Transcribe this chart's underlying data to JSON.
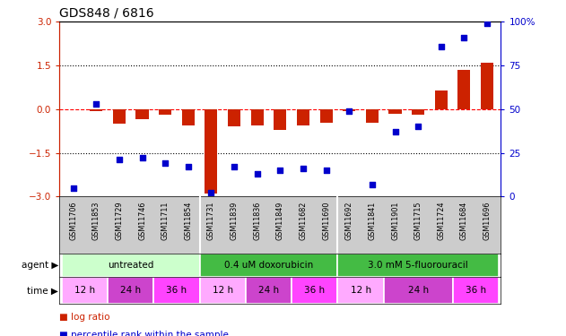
{
  "title": "GDS848 / 6816",
  "samples": [
    "GSM11706",
    "GSM11853",
    "GSM11729",
    "GSM11746",
    "GSM11711",
    "GSM11854",
    "GSM11731",
    "GSM11839",
    "GSM11836",
    "GSM11849",
    "GSM11682",
    "GSM11690",
    "GSM11692",
    "GSM11841",
    "GSM11901",
    "GSM11715",
    "GSM11724",
    "GSM11684",
    "GSM11696"
  ],
  "log_ratio": [
    0.0,
    -0.05,
    -0.5,
    -0.35,
    -0.2,
    -0.55,
    -2.9,
    -0.6,
    -0.55,
    -0.7,
    -0.55,
    -0.45,
    -0.05,
    -0.45,
    -0.15,
    -0.2,
    0.65,
    1.35,
    1.6
  ],
  "percentile": [
    5,
    53,
    21,
    22,
    19,
    17,
    2,
    17,
    13,
    15,
    16,
    15,
    49,
    7,
    37,
    40,
    86,
    91,
    99
  ],
  "agent_spans": [
    {
      "label": "untreated",
      "start": 0,
      "end": 6,
      "color": "#ccffcc"
    },
    {
      "label": "0.4 uM doxorubicin",
      "start": 6,
      "end": 12,
      "color": "#44bb44"
    },
    {
      "label": "3.0 mM 5-fluorouracil",
      "start": 12,
      "end": 19,
      "color": "#44bb44"
    }
  ],
  "time_spans": [
    {
      "label": "12 h",
      "start": 0,
      "end": 2,
      "color": "#ffaaff"
    },
    {
      "label": "24 h",
      "start": 2,
      "end": 4,
      "color": "#cc44cc"
    },
    {
      "label": "36 h",
      "start": 4,
      "end": 6,
      "color": "#ff44ff"
    },
    {
      "label": "12 h",
      "start": 6,
      "end": 8,
      "color": "#ffaaff"
    },
    {
      "label": "24 h",
      "start": 8,
      "end": 10,
      "color": "#cc44cc"
    },
    {
      "label": "36 h",
      "start": 10,
      "end": 12,
      "color": "#ff44ff"
    },
    {
      "label": "12 h",
      "start": 12,
      "end": 14,
      "color": "#ffaaff"
    },
    {
      "label": "24 h",
      "start": 14,
      "end": 17,
      "color": "#cc44cc"
    },
    {
      "label": "36 h",
      "start": 17,
      "end": 19,
      "color": "#ff44ff"
    }
  ],
  "bar_color": "#cc2200",
  "dot_color": "#0000cc",
  "ylim_left": [
    -3,
    3
  ],
  "ylim_right": [
    0,
    100
  ],
  "yticks_left": [
    -3,
    -1.5,
    0,
    1.5,
    3
  ],
  "yticks_right": [
    0,
    25,
    50,
    75,
    100
  ],
  "hlines": [
    {
      "y": -1.5,
      "style": "dotted",
      "color": "black"
    },
    {
      "y": 0.0,
      "style": "dashed",
      "color": "red"
    },
    {
      "y": 1.5,
      "style": "dotted",
      "color": "black"
    }
  ]
}
